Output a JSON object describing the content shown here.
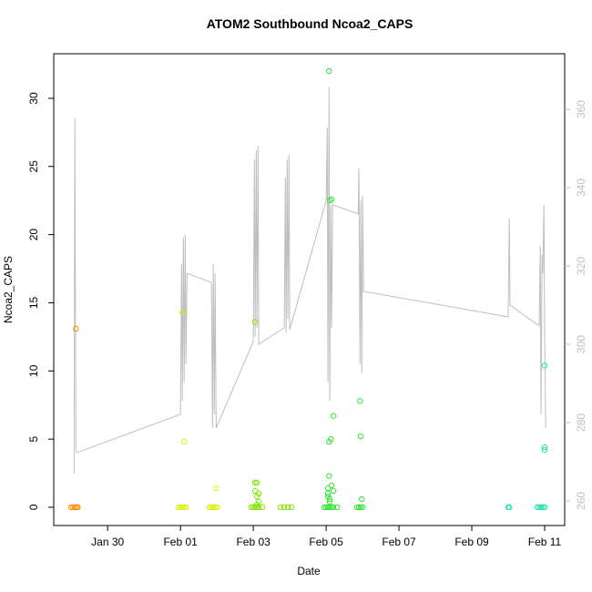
{
  "chart_data": {
    "type": "scatter",
    "title": "ATOM2 Southbound Ncoa2_CAPS",
    "xlabel": "Date",
    "ylabel": "Ncoa2_CAPS",
    "xlim": [
      28.52,
      42.55
    ],
    "ylim": [
      -1.34,
      33.27
    ],
    "y2lim": [
      253.7,
      374.2
    ],
    "xticks": [
      {
        "value": 30,
        "label": "Jan 30"
      },
      {
        "value": 32,
        "label": "Feb 01"
      },
      {
        "value": 34,
        "label": "Feb 03"
      },
      {
        "value": 36,
        "label": "Feb 05"
      },
      {
        "value": 38,
        "label": "Feb 07"
      },
      {
        "value": 40,
        "label": "Feb 09"
      },
      {
        "value": 42,
        "label": "Feb 11"
      }
    ],
    "yticks": [
      0,
      5,
      10,
      15,
      20,
      25,
      30
    ],
    "y2ticks": [
      260,
      280,
      300,
      320,
      340,
      360
    ],
    "y2tick_color": "#bebebe",
    "series": [
      {
        "mode": "line",
        "axis": "y2",
        "color": "#bebebe",
        "x": [
          29.08,
          29.1,
          29.13,
          29.15,
          32.0,
          32.03,
          32.05,
          32.08,
          32.1,
          32.13,
          32.15,
          32.18,
          32.85,
          32.88,
          32.9,
          32.93,
          32.95,
          32.98,
          34.0,
          34.03,
          34.05,
          34.08,
          34.1,
          34.13,
          34.15,
          34.85,
          34.88,
          34.9,
          34.93,
          34.95,
          34.98,
          35.0,
          36.0,
          36.03,
          36.05,
          36.08,
          36.1,
          36.13,
          36.15,
          36.18,
          36.88,
          36.9,
          36.93,
          36.95,
          36.98,
          37.0,
          37.03,
          41.0,
          41.03,
          41.05,
          41.85,
          41.88,
          41.9,
          41.93,
          41.95,
          41.98,
          42.0,
          42.03
        ],
        "values": [
          267.0,
          357.7,
          272.8,
          272.3,
          282.1,
          320.5,
          285.6,
          327.4,
          290.2,
          327.9,
          294.9,
          318.1,
          315.8,
          278.6,
          320.5,
          282.1,
          318.1,
          278.6,
          300.7,
          347.2,
          301.9,
          349.5,
          304.2,
          350.7,
          300.0,
          304.2,
          342.6,
          303.0,
          347.2,
          306.5,
          348.4,
          303.7,
          336.7,
          355.3,
          290.2,
          365.8,
          285.6,
          335.6,
          304.2,
          335.6,
          333.3,
          344.9,
          294.9,
          336.7,
          292.6,
          337.9,
          313.5,
          307.0,
          332.1,
          310.0,
          304.7,
          325.1,
          282.1,
          322.8,
          318.1,
          335.6,
          303.0,
          278.6
        ]
      },
      {
        "mode": "points",
        "color": "#ff8c00",
        "x": [
          29.0,
          29.05,
          29.1,
          29.15,
          29.18,
          29.13
        ],
        "values": [
          0,
          0,
          0,
          0,
          0,
          13.1
        ]
      },
      {
        "mode": "points",
        "color": "#e0f000",
        "x": [
          31.95,
          32.0,
          32.05,
          32.1,
          32.15,
          32.05,
          32.1,
          32.8,
          32.85,
          32.9,
          32.95,
          33.0,
          32.98
        ],
        "values": [
          0,
          0,
          0,
          0,
          0,
          14.3,
          4.8,
          0,
          0,
          0,
          0,
          0,
          1.4
        ]
      },
      {
        "mode": "points",
        "color": "#80e600",
        "x": [
          33.95,
          34.0,
          34.05,
          34.1,
          34.15,
          34.25,
          34.05,
          34.05,
          34.1,
          34.15,
          34.05,
          34.1,
          34.15,
          34.1,
          34.75,
          34.85,
          34.95,
          35.05
        ],
        "values": [
          0,
          0,
          0,
          0,
          0,
          0,
          13.6,
          1.8,
          1.8,
          1.0,
          1.2,
          0.8,
          0.4,
          0.2,
          0,
          0,
          0,
          0
        ]
      },
      {
        "mode": "points",
        "color": "#33e633",
        "x": [
          35.95,
          36.0,
          36.05,
          36.1,
          36.15,
          36.2,
          36.3,
          36.08,
          36.1,
          36.15,
          36.2,
          36.13,
          36.08,
          36.08,
          36.05,
          36.05,
          36.1,
          36.15,
          36.2,
          36.1,
          36.05,
          36.85,
          36.9,
          36.95,
          37.0,
          36.93,
          36.95,
          36.98
        ],
        "values": [
          0,
          0,
          0,
          0,
          0,
          0,
          0,
          32.0,
          22.5,
          22.6,
          6.7,
          5.0,
          4.8,
          2.3,
          1.4,
          1.0,
          0.6,
          1.6,
          1.2,
          0.4,
          0.8,
          0,
          0,
          0,
          0,
          7.8,
          5.2,
          0.6
        ]
      },
      {
        "mode": "points",
        "color": "#1ae6b3",
        "x": [
          41.0,
          41.03,
          41.8,
          41.85,
          41.9,
          41.95,
          42.0,
          42.0,
          42.0,
          42.0
        ],
        "values": [
          0,
          0,
          0,
          0,
          0,
          0,
          0,
          10.4,
          4.4,
          4.2
        ]
      }
    ]
  }
}
